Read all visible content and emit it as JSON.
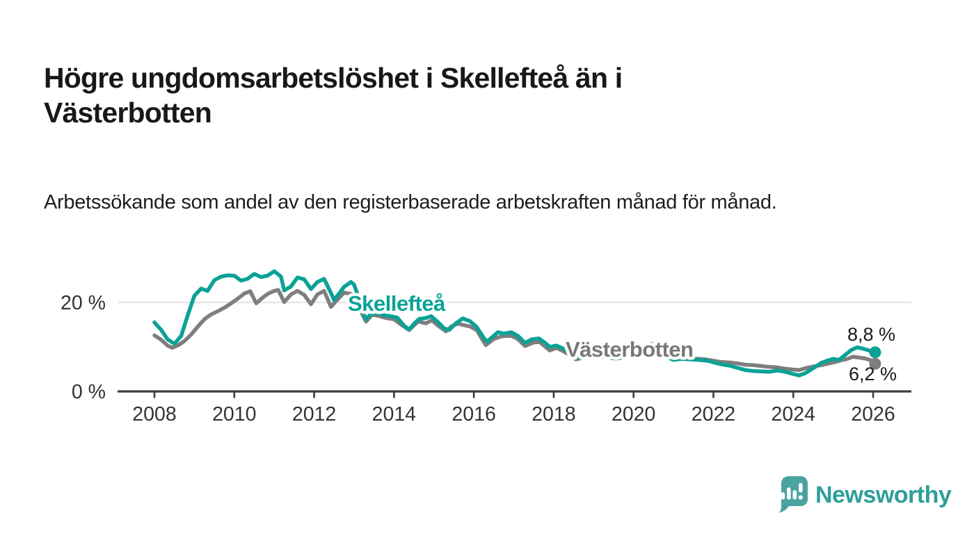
{
  "title": "Högre ungdomsarbetslöshet i Skellefteå än i Västerbotten",
  "subtitle": "Arbetssökande som andel av den registerbaserade arbetskraften månad för månad.",
  "chart_data": {
    "type": "line",
    "xlabel": "",
    "ylabel": "",
    "unit": "%",
    "x_axis": {
      "range": [
        2007,
        2027
      ],
      "ticks": [
        2008,
        2010,
        2012,
        2014,
        2016,
        2018,
        2020,
        2022,
        2024,
        2026
      ]
    },
    "y_axis": {
      "range": [
        0,
        28
      ],
      "ticks": [
        {
          "value": 0,
          "label": "0 %"
        },
        {
          "value": 20,
          "label": "20 %"
        }
      ],
      "gridlines": [
        20
      ]
    },
    "legend": "inline labels on lines",
    "grid_color": "#d9d9d9",
    "axis_color": "#3d3d3d",
    "series": [
      {
        "name": "Skellefteå",
        "color": "#0aa296",
        "end_label": "8,8 %",
        "last_value": 8.8,
        "points": [
          [
            2008.0,
            15.5
          ],
          [
            2008.17,
            13.8
          ],
          [
            2008.33,
            11.7
          ],
          [
            2008.5,
            10.7
          ],
          [
            2008.67,
            12.5
          ],
          [
            2008.83,
            17.0
          ],
          [
            2009.0,
            21.5
          ],
          [
            2009.17,
            23.1
          ],
          [
            2009.33,
            22.6
          ],
          [
            2009.5,
            25.0
          ],
          [
            2009.67,
            25.8
          ],
          [
            2009.83,
            26.1
          ],
          [
            2010.0,
            26.0
          ],
          [
            2010.17,
            24.9
          ],
          [
            2010.33,
            25.3
          ],
          [
            2010.5,
            26.4
          ],
          [
            2010.67,
            25.7
          ],
          [
            2010.83,
            26.0
          ],
          [
            2011.0,
            27.0
          ],
          [
            2011.17,
            25.8
          ],
          [
            2011.25,
            22.7
          ],
          [
            2011.42,
            23.6
          ],
          [
            2011.58,
            25.6
          ],
          [
            2011.75,
            25.2
          ],
          [
            2011.92,
            23.0
          ],
          [
            2012.08,
            24.6
          ],
          [
            2012.25,
            25.3
          ],
          [
            2012.42,
            22.1
          ],
          [
            2012.5,
            20.5
          ],
          [
            2012.58,
            21.5
          ],
          [
            2012.75,
            23.5
          ],
          [
            2012.92,
            24.6
          ],
          [
            2013.0,
            24.0
          ],
          [
            2013.08,
            22.0
          ],
          [
            2013.17,
            19.0
          ],
          [
            2013.3,
            16.2
          ],
          [
            2013.42,
            17.4
          ],
          [
            2013.58,
            17.6
          ],
          [
            2013.75,
            17.2
          ],
          [
            2013.92,
            16.9
          ],
          [
            2014.08,
            16.6
          ],
          [
            2014.25,
            14.8
          ],
          [
            2014.38,
            13.9
          ],
          [
            2014.5,
            15.2
          ],
          [
            2014.63,
            16.3
          ],
          [
            2014.8,
            16.5
          ],
          [
            2014.93,
            16.9
          ],
          [
            2015.1,
            15.6
          ],
          [
            2015.25,
            14.2
          ],
          [
            2015.38,
            13.8
          ],
          [
            2015.55,
            15.3
          ],
          [
            2015.72,
            16.4
          ],
          [
            2015.9,
            15.8
          ],
          [
            2016.07,
            14.5
          ],
          [
            2016.25,
            12.0
          ],
          [
            2016.33,
            11.2
          ],
          [
            2016.5,
            12.5
          ],
          [
            2016.6,
            13.3
          ],
          [
            2016.75,
            13.0
          ],
          [
            2016.94,
            13.3
          ],
          [
            2017.1,
            12.5
          ],
          [
            2017.28,
            10.9
          ],
          [
            2017.45,
            11.7
          ],
          [
            2017.63,
            11.9
          ],
          [
            2017.8,
            10.8
          ],
          [
            2017.9,
            10.0
          ],
          [
            2018.07,
            10.3
          ],
          [
            2018.25,
            9.6
          ],
          [
            2018.4,
            8.5
          ],
          [
            2018.55,
            7.7
          ],
          [
            2018.7,
            7.9
          ],
          [
            2018.9,
            8.4
          ],
          [
            2019.1,
            8.1
          ],
          [
            2019.3,
            7.7
          ],
          [
            2019.5,
            7.5
          ],
          [
            2019.7,
            7.6
          ],
          [
            2019.9,
            8.0
          ],
          [
            2020.1,
            8.8
          ],
          [
            2020.3,
            10.3
          ],
          [
            2020.45,
            10.7
          ],
          [
            2020.6,
            9.4
          ],
          [
            2020.8,
            7.8
          ],
          [
            2021.0,
            7.1
          ],
          [
            2021.2,
            7.3
          ],
          [
            2021.4,
            7.2
          ],
          [
            2021.6,
            7.1
          ],
          [
            2021.75,
            7.0
          ],
          [
            2021.9,
            6.8
          ],
          [
            2022.05,
            6.4
          ],
          [
            2022.2,
            6.1
          ],
          [
            2022.4,
            5.8
          ],
          [
            2022.6,
            5.3
          ],
          [
            2022.8,
            4.8
          ],
          [
            2023.0,
            4.6
          ],
          [
            2023.2,
            4.5
          ],
          [
            2023.4,
            4.4
          ],
          [
            2023.6,
            4.7
          ],
          [
            2023.8,
            4.4
          ],
          [
            2024.0,
            3.9
          ],
          [
            2024.15,
            3.6
          ],
          [
            2024.3,
            4.1
          ],
          [
            2024.5,
            5.2
          ],
          [
            2024.7,
            6.4
          ],
          [
            2024.85,
            6.9
          ],
          [
            2025.0,
            7.3
          ],
          [
            2025.15,
            7.1
          ],
          [
            2025.3,
            8.2
          ],
          [
            2025.45,
            9.3
          ],
          [
            2025.6,
            9.9
          ],
          [
            2025.75,
            9.6
          ],
          [
            2025.9,
            9.2
          ],
          [
            2026.05,
            8.8
          ]
        ]
      },
      {
        "name": "Västerbotten",
        "color": "#7e7e7e",
        "end_label": "6,2 %",
        "last_value": 6.2,
        "points": [
          [
            2008.0,
            12.6
          ],
          [
            2008.17,
            11.6
          ],
          [
            2008.33,
            10.3
          ],
          [
            2008.45,
            9.8
          ],
          [
            2008.6,
            10.4
          ],
          [
            2008.75,
            11.3
          ],
          [
            2008.92,
            12.8
          ],
          [
            2009.08,
            14.5
          ],
          [
            2009.25,
            16.2
          ],
          [
            2009.42,
            17.3
          ],
          [
            2009.58,
            18.0
          ],
          [
            2009.75,
            18.8
          ],
          [
            2009.92,
            19.8
          ],
          [
            2010.08,
            20.8
          ],
          [
            2010.25,
            22.0
          ],
          [
            2010.4,
            22.5
          ],
          [
            2010.55,
            19.8
          ],
          [
            2010.7,
            21.0
          ],
          [
            2010.85,
            22.0
          ],
          [
            2011.0,
            22.6
          ],
          [
            2011.1,
            22.8
          ],
          [
            2011.25,
            20.1
          ],
          [
            2011.42,
            21.8
          ],
          [
            2011.58,
            22.6
          ],
          [
            2011.75,
            21.7
          ],
          [
            2011.92,
            19.6
          ],
          [
            2012.08,
            21.8
          ],
          [
            2012.25,
            22.6
          ],
          [
            2012.42,
            19.0
          ],
          [
            2012.55,
            20.3
          ],
          [
            2012.75,
            22.2
          ],
          [
            2012.92,
            21.9
          ],
          [
            2013.08,
            19.5
          ],
          [
            2013.3,
            15.7
          ],
          [
            2013.45,
            17.2
          ],
          [
            2013.6,
            17.0
          ],
          [
            2013.8,
            16.5
          ],
          [
            2014.0,
            16.2
          ],
          [
            2014.15,
            15.2
          ],
          [
            2014.38,
            13.8
          ],
          [
            2014.6,
            15.7
          ],
          [
            2014.8,
            15.3
          ],
          [
            2014.95,
            16.0
          ],
          [
            2015.1,
            14.8
          ],
          [
            2015.3,
            13.5
          ],
          [
            2015.45,
            14.7
          ],
          [
            2015.6,
            15.2
          ],
          [
            2015.9,
            14.6
          ],
          [
            2016.07,
            13.8
          ],
          [
            2016.3,
            10.4
          ],
          [
            2016.5,
            11.8
          ],
          [
            2016.7,
            12.4
          ],
          [
            2016.94,
            12.5
          ],
          [
            2017.1,
            11.8
          ],
          [
            2017.28,
            10.2
          ],
          [
            2017.5,
            11.0
          ],
          [
            2017.65,
            11.1
          ],
          [
            2017.9,
            9.2
          ],
          [
            2018.07,
            9.8
          ],
          [
            2018.25,
            9.0
          ],
          [
            2018.4,
            8.2
          ],
          [
            2018.55,
            7.2
          ],
          [
            2018.75,
            7.6
          ],
          [
            2018.95,
            8.1
          ],
          [
            2019.15,
            7.9
          ],
          [
            2019.35,
            7.6
          ],
          [
            2019.55,
            7.4
          ],
          [
            2019.75,
            7.6
          ],
          [
            2019.95,
            8.0
          ],
          [
            2020.15,
            8.9
          ],
          [
            2020.35,
            10.0
          ],
          [
            2020.5,
            10.3
          ],
          [
            2020.65,
            9.2
          ],
          [
            2020.85,
            8.0
          ],
          [
            2021.05,
            7.5
          ],
          [
            2021.25,
            7.5
          ],
          [
            2021.45,
            7.4
          ],
          [
            2021.65,
            7.3
          ],
          [
            2021.8,
            7.2
          ],
          [
            2022.0,
            6.9
          ],
          [
            2022.2,
            6.6
          ],
          [
            2022.4,
            6.5
          ],
          [
            2022.6,
            6.3
          ],
          [
            2022.8,
            6.0
          ],
          [
            2023.0,
            5.9
          ],
          [
            2023.2,
            5.7
          ],
          [
            2023.4,
            5.5
          ],
          [
            2023.6,
            5.4
          ],
          [
            2023.8,
            5.1
          ],
          [
            2024.0,
            4.9
          ],
          [
            2024.15,
            4.8
          ],
          [
            2024.3,
            5.2
          ],
          [
            2024.5,
            5.6
          ],
          [
            2024.7,
            5.9
          ],
          [
            2024.9,
            6.3
          ],
          [
            2025.05,
            6.6
          ],
          [
            2025.2,
            7.0
          ],
          [
            2025.35,
            7.3
          ],
          [
            2025.5,
            7.8
          ],
          [
            2025.65,
            7.6
          ],
          [
            2025.8,
            7.4
          ],
          [
            2025.95,
            7.0
          ],
          [
            2026.05,
            6.2
          ]
        ]
      }
    ]
  },
  "branding": {
    "logo_text": "Newsworthy",
    "text_color": "#2d9f99",
    "bubble_color": "#4aa3a0"
  }
}
